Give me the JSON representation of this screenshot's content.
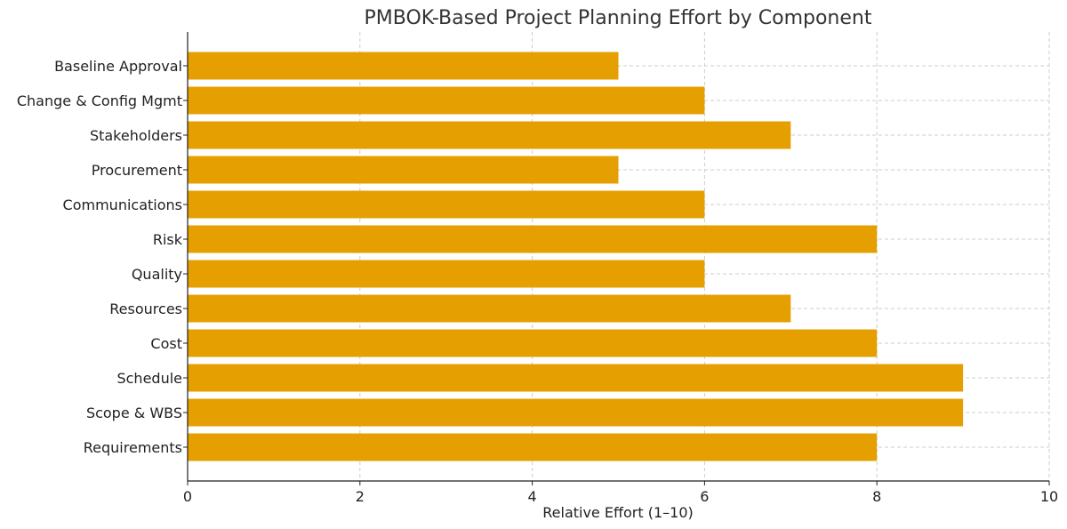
{
  "chart_data": {
    "type": "bar",
    "orientation": "horizontal",
    "title": "PMBOK-Based Project Planning Effort by Component",
    "xlabel": "Relative Effort (1–10)",
    "ylabel": "",
    "categories": [
      "Requirements",
      "Scope & WBS",
      "Schedule",
      "Cost",
      "Resources",
      "Quality",
      "Risk",
      "Communications",
      "Procurement",
      "Stakeholders",
      "Change & Config Mgmt",
      "Baseline Approval"
    ],
    "values": [
      8,
      9,
      9,
      8,
      7,
      6,
      8,
      6,
      5,
      7,
      6,
      5
    ],
    "xlim": [
      0,
      10
    ],
    "xticks": [
      0,
      2,
      4,
      6,
      8,
      10
    ],
    "grid": true,
    "bar_color": "#E69F00"
  }
}
